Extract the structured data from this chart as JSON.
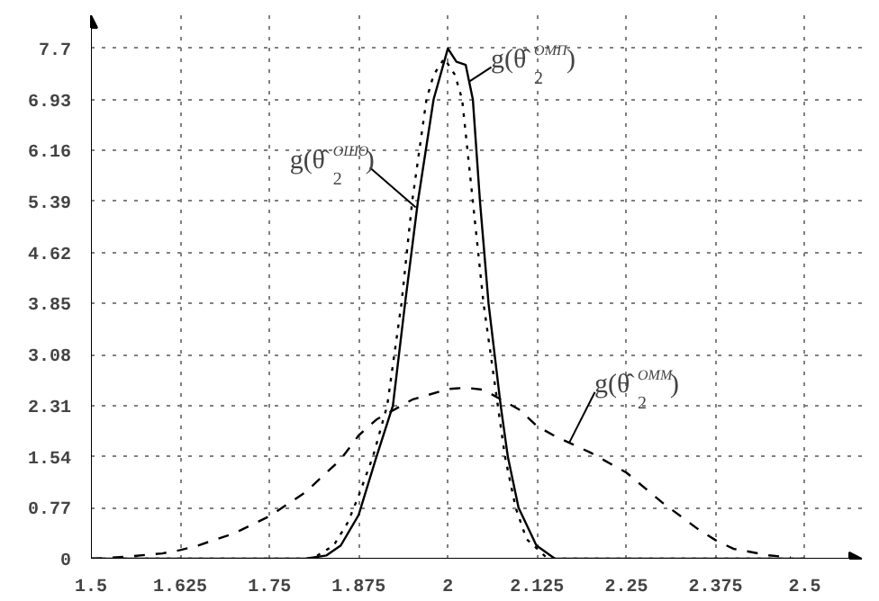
{
  "chart_data": {
    "type": "line",
    "series": [
      {
        "color": "#000000",
        "line_style": "solid",
        "x": [
          1.5,
          1.8,
          1.83,
          1.85,
          1.875,
          1.9,
          1.923,
          1.94,
          1.958,
          1.98,
          2.0,
          2.012,
          2.025,
          2.035,
          2.045,
          2.057,
          2.074,
          2.084,
          2.099,
          2.124,
          2.15,
          2.5
        ],
        "values": [
          0,
          0,
          0.05,
          0.2,
          0.66,
          1.54,
          2.31,
          3.85,
          5.39,
          6.93,
          7.7,
          7.5,
          7.45,
          6.93,
          5.39,
          3.85,
          2.31,
          1.54,
          0.77,
          0.2,
          0,
          0
        ]
      },
      {
        "color": "#000000",
        "line_style": "dotted",
        "x": [
          1.5,
          1.81,
          1.84,
          1.86,
          1.875,
          1.895,
          1.915,
          1.935,
          1.95,
          1.97,
          1.98,
          1.995,
          2.01,
          2.02,
          2.035,
          2.05,
          2.07,
          2.08,
          2.095,
          2.11,
          2.14,
          2.5
        ],
        "values": [
          0,
          0,
          0.2,
          0.55,
          0.95,
          1.54,
          2.31,
          3.85,
          5.39,
          6.93,
          7.3,
          7.55,
          7.3,
          6.93,
          5.39,
          3.85,
          2.31,
          1.54,
          0.77,
          0.3,
          0,
          0
        ]
      },
      {
        "color": "#000000",
        "line_style": "dashed",
        "x": [
          1.5,
          1.55,
          1.6,
          1.625,
          1.65,
          1.7,
          1.75,
          1.8,
          1.85,
          1.875,
          1.9,
          1.95,
          2.0,
          2.025,
          2.05,
          2.1,
          2.125,
          2.15,
          2.2,
          2.25,
          2.3,
          2.35,
          2.375,
          2.4,
          2.45,
          2.48
        ],
        "values": [
          0,
          0.03,
          0.08,
          0.13,
          0.2,
          0.38,
          0.64,
          1.0,
          1.5,
          1.86,
          2.1,
          2.4,
          2.56,
          2.58,
          2.55,
          2.25,
          2.0,
          1.85,
          1.6,
          1.3,
          0.85,
          0.45,
          0.28,
          0.15,
          0.05,
          0.02
        ]
      }
    ],
    "xlim": [
      1.5,
      2.58
    ],
    "ylim": [
      0,
      8.2
    ],
    "xticks": [
      1.5,
      1.625,
      1.75,
      1.875,
      2,
      2.125,
      2.25,
      2.375,
      2.5
    ],
    "yticks": [
      0,
      0.77,
      1.54,
      2.31,
      3.08,
      3.85,
      4.62,
      5.39,
      6.16,
      6.93,
      7.7
    ],
    "grid": true,
    "annotations": [
      {
        "text": "g(θ̂$_{2}$$^{ОМП}$)",
        "x": 2.03,
        "y": 7.2
      },
      {
        "text": "g(θ̂$_{2}$$^{ОШО}$)",
        "x": 1.955,
        "y": 5.3
      },
      {
        "text": "g(θ̂$_{2}$$^{ОММ}$)",
        "x": 2.17,
        "y": 1.75
      }
    ]
  }
}
